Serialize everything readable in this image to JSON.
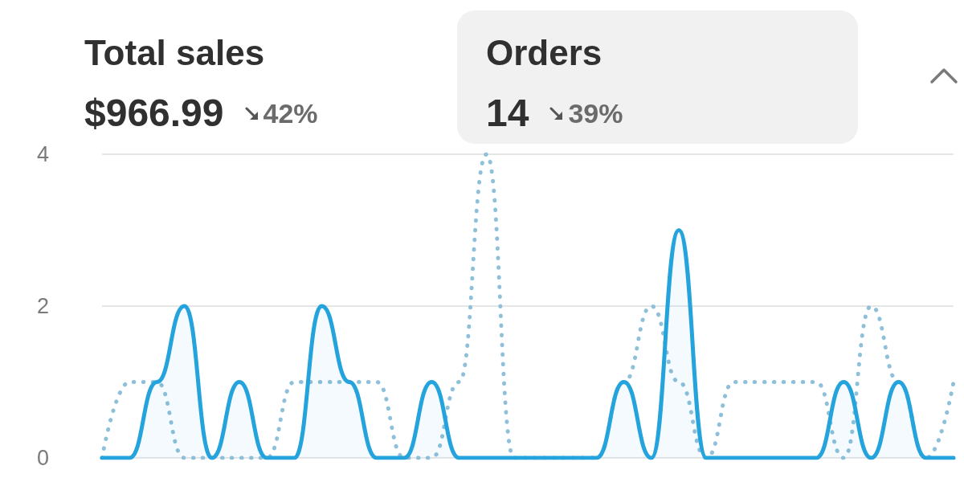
{
  "chart_data": {
    "type": "line",
    "categories": [
      null,
      null,
      null,
      null,
      null,
      null,
      null,
      null,
      null,
      null,
      null,
      null,
      null,
      null,
      null,
      null,
      null,
      null,
      null,
      null,
      null,
      null,
      null,
      null,
      null,
      null,
      null,
      null,
      null,
      null,
      null,
      null
    ],
    "series": [
      {
        "type": "area",
        "color": "#24a3dc",
        "values": [
          0,
          0,
          1,
          2,
          0,
          1,
          0,
          0,
          2,
          1,
          0,
          0,
          1,
          0,
          0,
          0,
          0,
          0,
          0,
          1,
          0,
          3,
          0,
          0,
          0,
          0,
          0,
          1,
          0,
          1,
          0,
          0
        ]
      },
      {
        "color": "#8fc0da",
        "line_style": "dotted",
        "values": [
          0,
          1,
          1,
          0,
          0,
          0,
          0,
          1,
          1,
          1,
          1,
          0,
          0,
          1,
          4,
          0,
          0,
          0,
          0,
          1,
          2,
          1,
          0,
          1,
          1,
          1,
          1,
          0,
          2,
          1,
          0,
          1
        ]
      }
    ],
    "ylim": [
      0,
      4
    ],
    "yticks": [
      0,
      2,
      4
    ],
    "grid": "y",
    "marker": "none",
    "line_style": "solid",
    "tick_labels": "y",
    "annotations": [
      "Total sales",
      "$966.99",
      "42%",
      "Orders",
      "14",
      "39%"
    ]
  }
}
